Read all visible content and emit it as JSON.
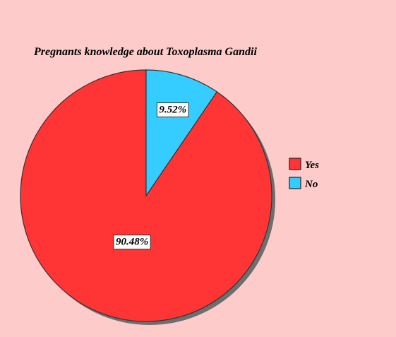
{
  "chart_data": {
    "type": "pie",
    "title": "Pregnants knowledge about Toxoplasma Gandii",
    "categories": [
      "Yes",
      "No"
    ],
    "values": [
      90.48,
      9.52
    ],
    "data_labels": [
      "90.48%",
      "9.52%"
    ],
    "colors": [
      "#ff3535",
      "#35ccff"
    ],
    "legend_position": "right",
    "start_angle": "12 o'clock",
    "direction": "counter-clockwise"
  }
}
